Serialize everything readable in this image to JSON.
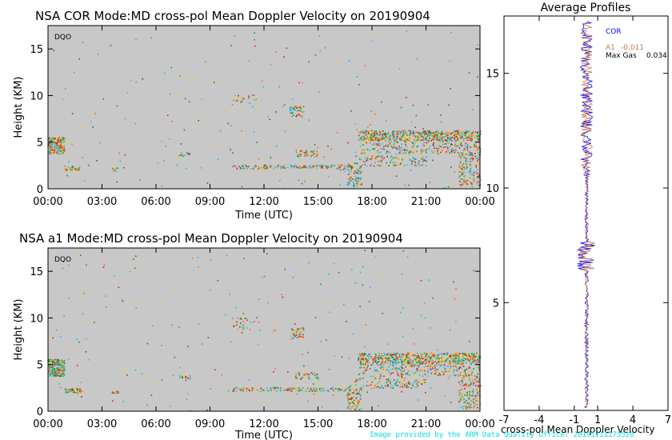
{
  "credit": "Image provided by the ARM Data Quality Office: 20191111175520",
  "colors": {
    "panel_bg": "#c8c8c8",
    "points": [
      "#1e8c1e",
      "#ff6a00",
      "#ffd200",
      "#d21e1e",
      "#5aa0ff",
      "#00c8c8"
    ],
    "cor_line": "#0000ff",
    "a1_line": "#c87850"
  },
  "chart_data": [
    {
      "type": "heatmap",
      "title": "NSA COR  Mode:MD  cross-pol Mean Doppler Velocity on 20190904",
      "tag": "DQO",
      "xlabel": "Time (UTC)",
      "ylabel": "Height (KM)",
      "x_ticks": [
        "00:00",
        "03:00",
        "06:00",
        "09:00",
        "12:00",
        "15:00",
        "18:00",
        "21:00",
        "00:00"
      ],
      "xlim_hours": [
        0,
        24
      ],
      "y_ticks": [
        0,
        5,
        10,
        15
      ],
      "ylim": [
        0,
        17.5
      ]
    },
    {
      "type": "heatmap",
      "title": "NSA a1  Mode:MD  cross-pol Mean Doppler Velocity on 20190904",
      "tag": "DQO",
      "xlabel": "Time (UTC)",
      "ylabel": "Height (KM)",
      "x_ticks": [
        "00:00",
        "03:00",
        "06:00",
        "09:00",
        "12:00",
        "15:00",
        "18:00",
        "21:00",
        "00:00"
      ],
      "xlim_hours": [
        0,
        24
      ],
      "y_ticks": [
        0,
        5,
        10,
        15
      ],
      "ylim": [
        0,
        17.5
      ]
    },
    {
      "type": "line",
      "title": "Average Profiles",
      "xlabel": "cross-pol Mean Doppler Velocity",
      "x_ticks": [
        -7,
        -4,
        -1,
        1,
        4,
        7
      ],
      "xlim": [
        -7,
        7
      ],
      "y_ticks": [
        5,
        10,
        15
      ],
      "ylim": [
        0.3,
        17.5
      ],
      "legend": [
        {
          "name": "COR",
          "color": "#0000ff"
        },
        {
          "name": "A1",
          "value": "-0.011",
          "color": "#c87850"
        },
        {
          "name": "Max Gas",
          "value": "0.034",
          "color": "#000000"
        }
      ]
    }
  ]
}
